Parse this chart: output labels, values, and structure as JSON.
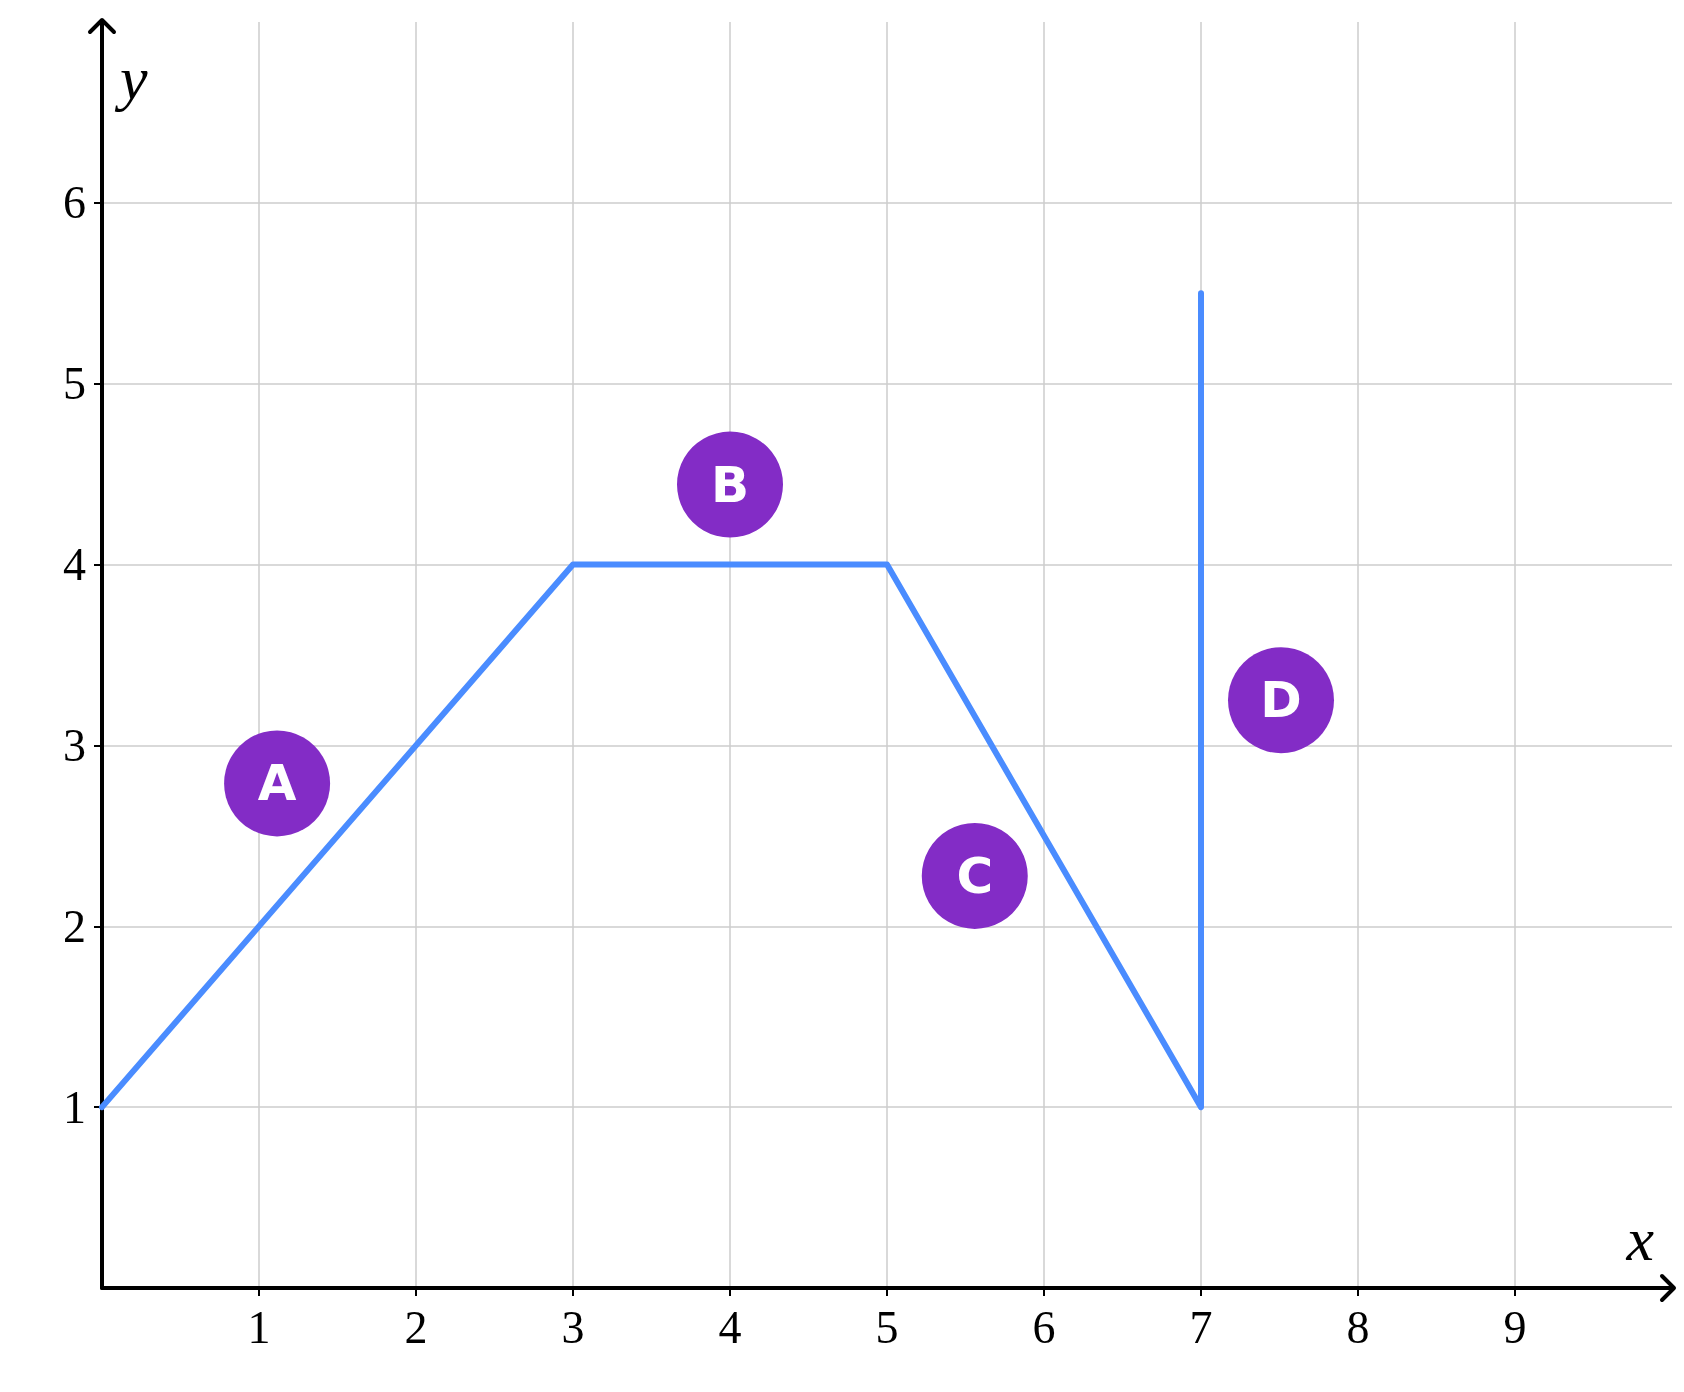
{
  "chart_data": {
    "type": "line",
    "xlabel": "x",
    "ylabel": "y",
    "x": [
      0,
      3,
      5,
      7,
      7
    ],
    "values": [
      1,
      4,
      4,
      1,
      5.5
    ],
    "color": "#4a8cff",
    "marker": "none",
    "line_style": "solid",
    "grid": true,
    "xlim": [
      0,
      10
    ],
    "ylim": [
      0,
      7
    ],
    "xticks": [
      1,
      2,
      3,
      4,
      5,
      6,
      7,
      8,
      9
    ],
    "yticks": [
      1,
      2,
      3,
      4,
      5,
      6
    ],
    "annotations": [
      "A",
      "B",
      "C",
      "D"
    ]
  }
}
